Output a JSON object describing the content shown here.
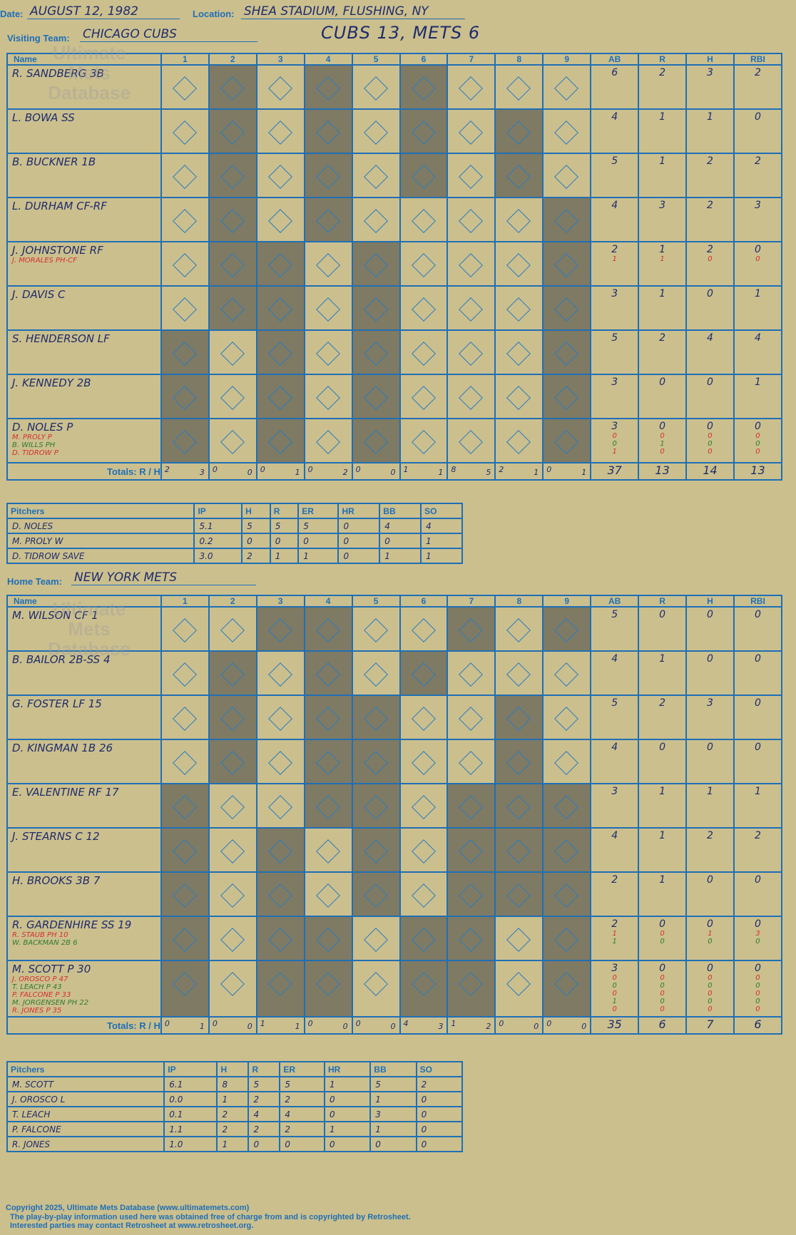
{
  "header": {
    "date_label": "Date:",
    "date": "AUGUST 12, 1982",
    "location_label": "Location:",
    "location": "SHEA STADIUM, FLUSHING, NY",
    "visiting_label": "Visiting Team:",
    "visiting_team": "CHICAGO CUBS",
    "home_label": "Home Team:",
    "home_team": "NEW YORK METS",
    "score": "CUBS 13, METS 6"
  },
  "columns": {
    "name": "Name",
    "innings": [
      "1",
      "2",
      "3",
      "4",
      "5",
      "6",
      "7",
      "8",
      "9"
    ],
    "stats": [
      "AB",
      "R",
      "H",
      "RBI"
    ]
  },
  "watermark": {
    "line1": "Ultimate",
    "line2": "Mets",
    "line3": "Database",
    "url": "ultimatemets.com"
  },
  "visitors": {
    "rows": [
      {
        "name": "R. SANDBERG 3B",
        "subs": [],
        "stats": [
          "6",
          "2",
          "3",
          "2"
        ],
        "substats": []
      },
      {
        "name": "L. BOWA SS",
        "subs": [],
        "stats": [
          "4",
          "1",
          "1",
          "0"
        ],
        "substats": []
      },
      {
        "name": "B. BUCKNER 1B",
        "subs": [],
        "stats": [
          "5",
          "1",
          "2",
          "2"
        ],
        "substats": []
      },
      {
        "name": "L. DURHAM CF-RF",
        "subs": [],
        "stats": [
          "4",
          "3",
          "2",
          "3"
        ],
        "substats": []
      },
      {
        "name": "J. JOHNSTONE RF",
        "subs": [
          "J. MORALES PH-CF"
        ],
        "stats": [
          "2",
          "1",
          "2",
          "0"
        ],
        "substats": [
          [
            "1",
            "1",
            "0",
            "0"
          ]
        ]
      },
      {
        "name": "J. DAVIS C",
        "subs": [],
        "stats": [
          "3",
          "1",
          "0",
          "1"
        ],
        "substats": []
      },
      {
        "name": "S. HENDERSON LF",
        "subs": [],
        "stats": [
          "5",
          "2",
          "4",
          "4"
        ],
        "substats": []
      },
      {
        "name": "J. KENNEDY 2B",
        "subs": [],
        "stats": [
          "3",
          "0",
          "0",
          "1"
        ],
        "substats": []
      },
      {
        "name": "D. NOLES P",
        "subs": [
          "M. PROLY P",
          "B. WILLS PH",
          "D. TIDROW P"
        ],
        "stats": [
          "3",
          "0",
          "0",
          "0"
        ],
        "substats": [
          [
            "0",
            "0",
            "0",
            "0"
          ],
          [
            "0",
            "1",
            "0",
            "0"
          ],
          [
            "1",
            "0",
            "0",
            "0"
          ]
        ]
      }
    ],
    "totals": {
      "label": "Totals:",
      "r": "R",
      "h": "H",
      "innings": [
        [
          "2",
          "3"
        ],
        [
          "0",
          "0"
        ],
        [
          "0",
          "1"
        ],
        [
          "0",
          "2"
        ],
        [
          "0",
          "0"
        ],
        [
          "1",
          "1"
        ],
        [
          "8",
          "5"
        ],
        [
          "2",
          "1"
        ],
        [
          "0",
          "1"
        ]
      ],
      "stats": [
        "37",
        "13",
        "14",
        "13"
      ]
    },
    "pitchers": {
      "headers": [
        "Pitchers",
        "IP",
        "H",
        "R",
        "ER",
        "HR",
        "BB",
        "SO"
      ],
      "rows": [
        [
          "D. NOLES",
          "5.1",
          "5",
          "5",
          "5",
          "0",
          "4",
          "4"
        ],
        [
          "M. PROLY W",
          "0.2",
          "0",
          "0",
          "0",
          "0",
          "0",
          "1"
        ],
        [
          "D. TIDROW SAVE",
          "3.0",
          "2",
          "1",
          "1",
          "0",
          "1",
          "1"
        ]
      ]
    }
  },
  "home": {
    "rows": [
      {
        "name": "M. WILSON CF 1",
        "subs": [],
        "stats": [
          "5",
          "0",
          "0",
          "0"
        ],
        "substats": []
      },
      {
        "name": "B. BAILOR 2B-SS 4",
        "subs": [],
        "stats": [
          "4",
          "1",
          "0",
          "0"
        ],
        "substats": []
      },
      {
        "name": "G. FOSTER LF 15",
        "subs": [],
        "stats": [
          "5",
          "2",
          "3",
          "0"
        ],
        "substats": []
      },
      {
        "name": "D. KINGMAN 1B 26",
        "subs": [],
        "stats": [
          "4",
          "0",
          "0",
          "0"
        ],
        "substats": []
      },
      {
        "name": "E. VALENTINE RF 17",
        "subs": [],
        "stats": [
          "3",
          "1",
          "1",
          "1"
        ],
        "substats": []
      },
      {
        "name": "J. STEARNS C 12",
        "subs": [],
        "stats": [
          "4",
          "1",
          "2",
          "2"
        ],
        "substats": []
      },
      {
        "name": "H. BROOKS 3B 7",
        "subs": [],
        "stats": [
          "2",
          "1",
          "0",
          "0"
        ],
        "substats": []
      },
      {
        "name": "R. GARDENHIRE SS 19",
        "subs": [
          "R. STAUB PH 10",
          "W. BACKMAN 2B 6"
        ],
        "stats": [
          "2",
          "0",
          "0",
          "0"
        ],
        "substats": [
          [
            "1",
            "0",
            "1",
            "3"
          ],
          [
            "1",
            "0",
            "0",
            "0"
          ]
        ]
      },
      {
        "name": "M. SCOTT P 30",
        "subs": [
          "J. OROSCO P 47",
          "T. LEACH P 43",
          "P. FALCONE P 33",
          "M. JORGENSEN PH 22",
          "R. JONES P 35"
        ],
        "stats": [
          "3",
          "0",
          "0",
          "0"
        ],
        "substats": [
          [
            "0",
            "0",
            "0",
            "0"
          ],
          [
            "0",
            "0",
            "0",
            "0"
          ],
          [
            "0",
            "0",
            "0",
            "0"
          ],
          [
            "1",
            "0",
            "0",
            "0"
          ],
          [
            "0",
            "0",
            "0",
            "0"
          ]
        ]
      }
    ],
    "totals": {
      "label": "Totals:",
      "r": "R",
      "h": "H",
      "innings": [
        [
          "0",
          "1"
        ],
        [
          "0",
          "0"
        ],
        [
          "1",
          "1"
        ],
        [
          "0",
          "0"
        ],
        [
          "0",
          "0"
        ],
        [
          "4",
          "3"
        ],
        [
          "1",
          "2"
        ],
        [
          "0",
          "0"
        ],
        [
          "0",
          "0"
        ]
      ],
      "stats": [
        "35",
        "6",
        "7",
        "6"
      ]
    },
    "pitchers": {
      "headers": [
        "Pitchers",
        "IP",
        "H",
        "R",
        "ER",
        "HR",
        "BB",
        "SO"
      ],
      "rows": [
        [
          "M. SCOTT",
          "6.1",
          "8",
          "5",
          "5",
          "1",
          "5",
          "2"
        ],
        [
          "J. OROSCO L",
          "0.0",
          "1",
          "2",
          "2",
          "0",
          "1",
          "0"
        ],
        [
          "T. LEACH",
          "0.1",
          "2",
          "4",
          "4",
          "0",
          "3",
          "0"
        ],
        [
          "P. FALCONE",
          "1.1",
          "2",
          "2",
          "2",
          "1",
          "1",
          "0"
        ],
        [
          "R. JONES",
          "1.0",
          "1",
          "0",
          "0",
          "0",
          "0",
          "0"
        ]
      ]
    }
  },
  "footer": {
    "line1": "Copyright 2025, Ultimate Mets Database (www.ultimatemets.com)",
    "line2": "The play-by-play information used here was obtained free of charge from and is copyrighted by Retrosheet.",
    "line3": "Interested parties may contact Retrosheet at www.retrosheet.org."
  }
}
